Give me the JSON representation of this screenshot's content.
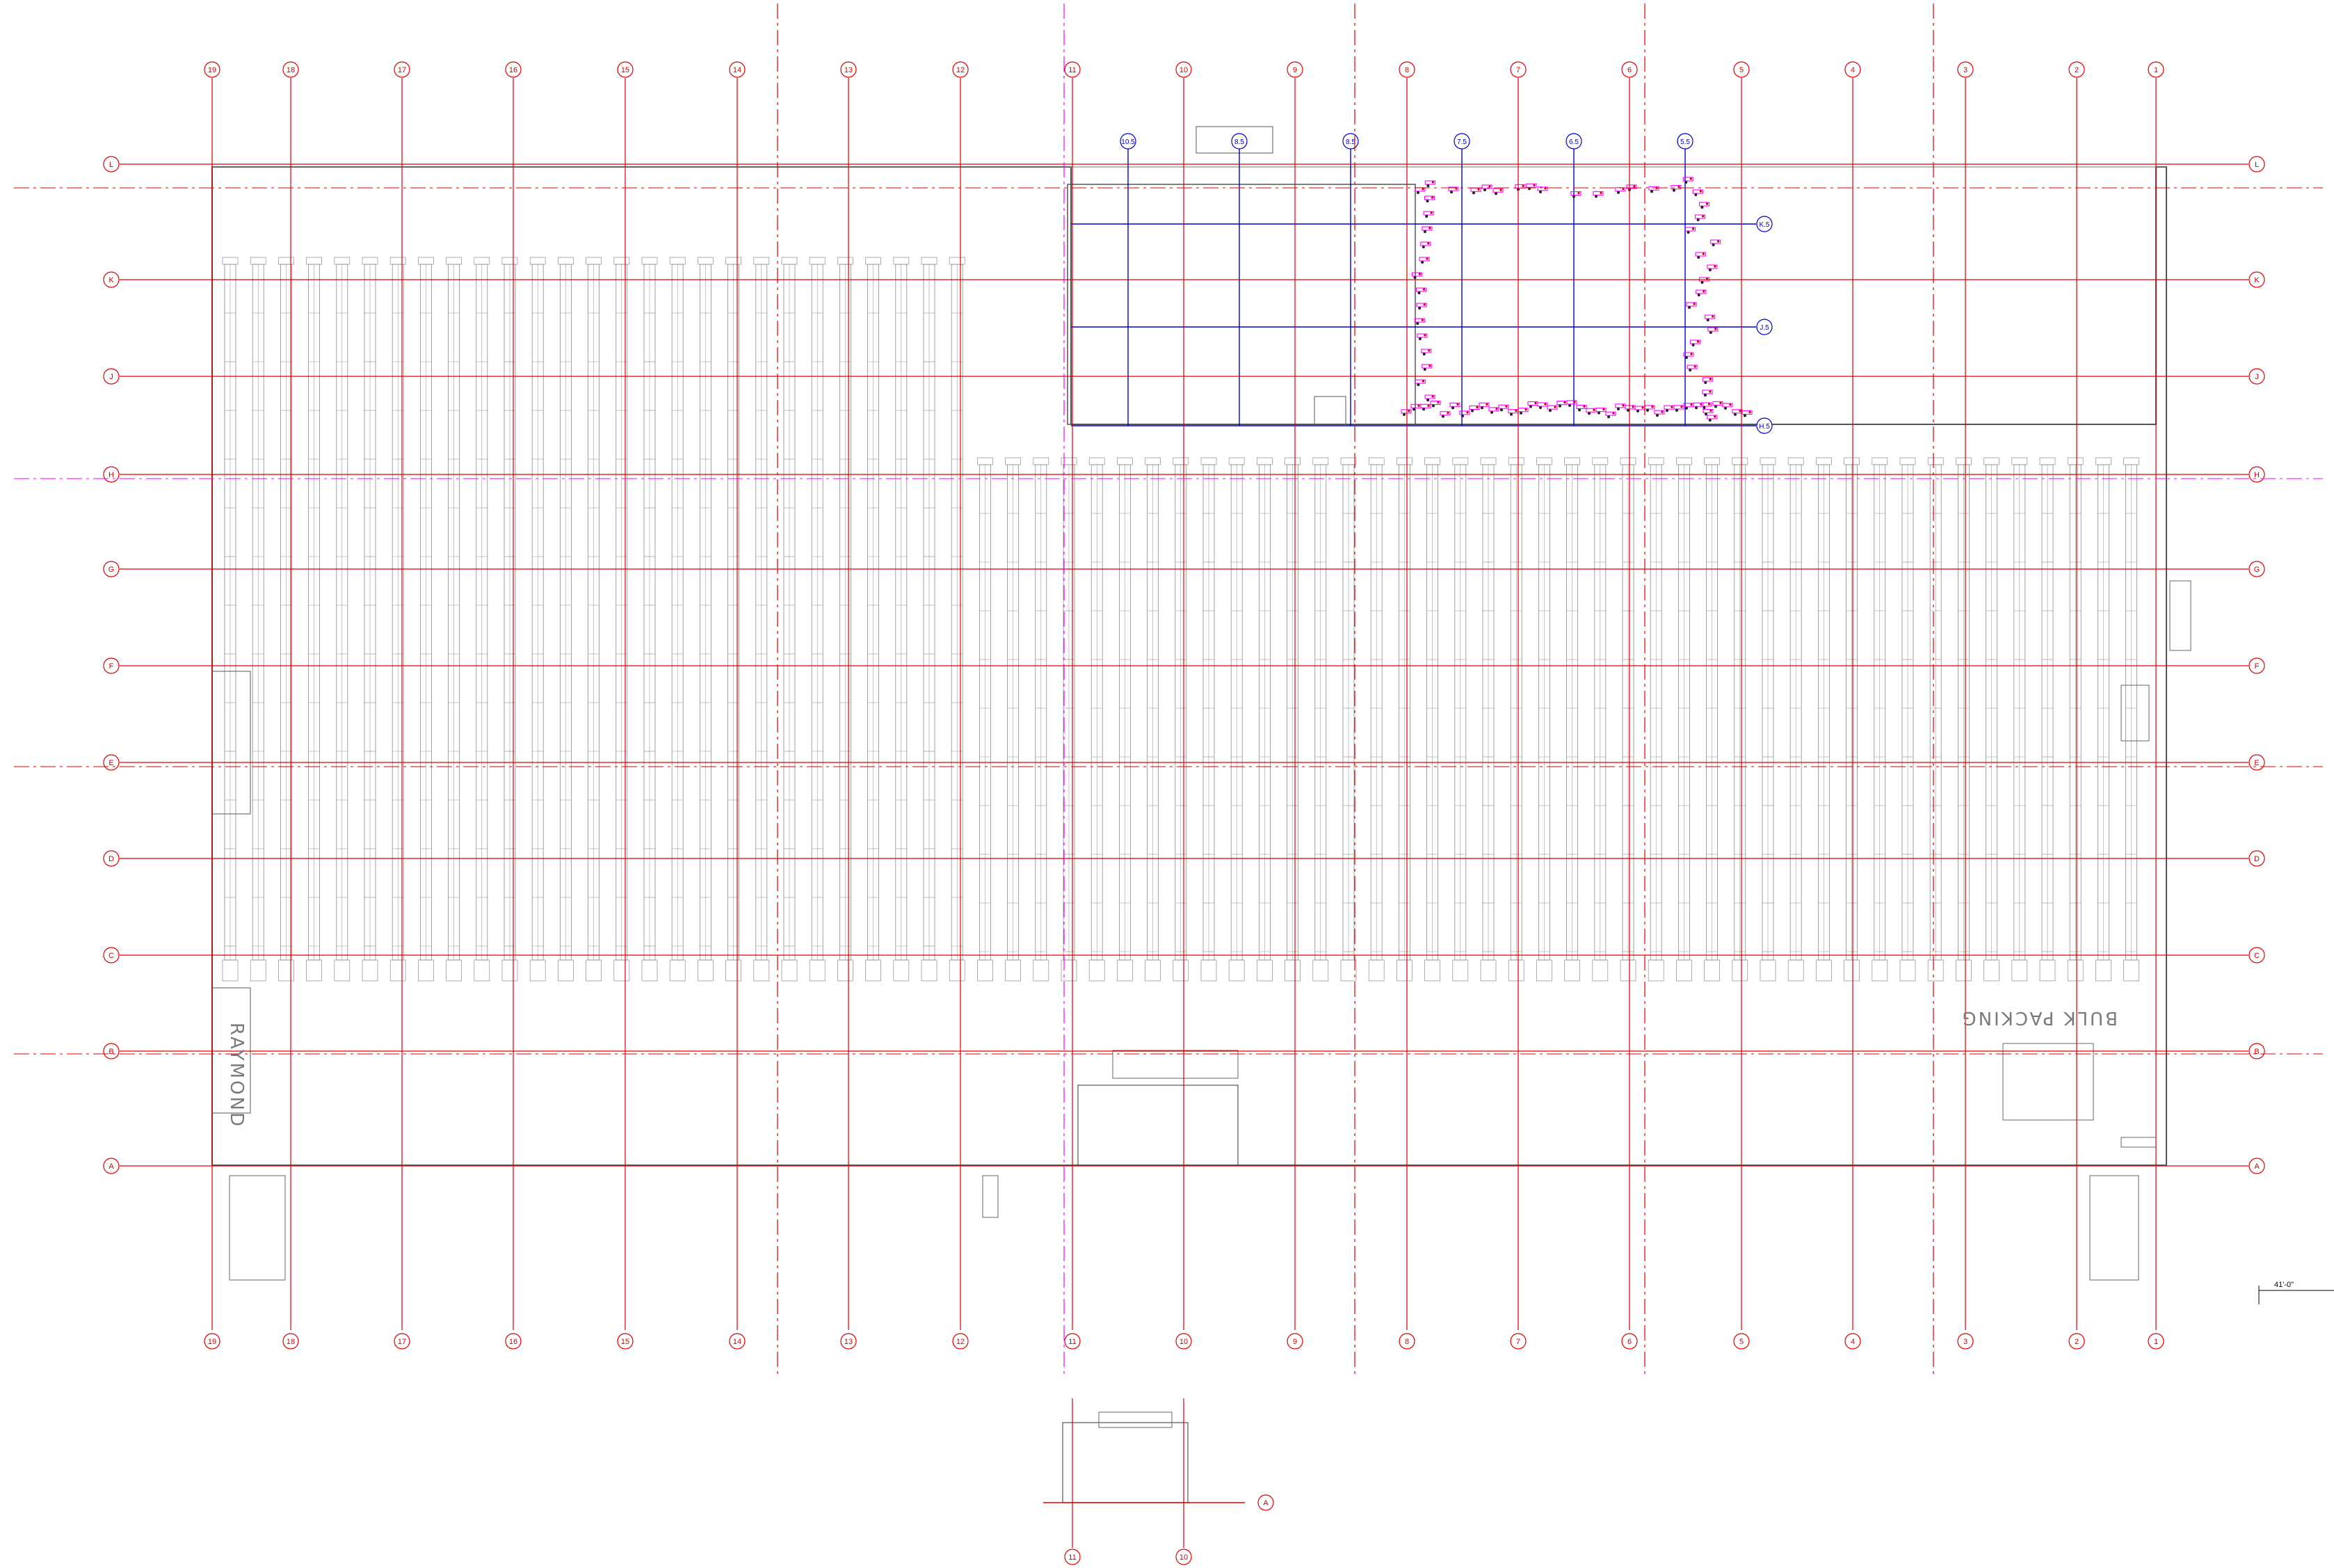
{
  "drawing": {
    "column_grid": [
      "19",
      "18",
      "17",
      "16",
      "15",
      "14",
      "13",
      "12",
      "11",
      "10",
      "9",
      "8",
      "7",
      "6",
      "5",
      "4",
      "3",
      "2",
      "1"
    ],
    "row_grid": [
      "L",
      "K",
      "J",
      "H",
      "G",
      "F",
      "E",
      "D",
      "C",
      "B",
      "A"
    ],
    "interior_grid_cols": [
      "10.5",
      "8.5",
      "8.5",
      "7.5",
      "6.5",
      "5.5"
    ],
    "interior_grid_rows": [
      "K.5",
      "J.5",
      "H.5"
    ],
    "labels": {
      "raymond": "RAYMOND",
      "bulk_packing": "BULK PACKING",
      "scale_text": "41'-0\""
    },
    "detail": {
      "column_labels": [
        "11",
        "10"
      ],
      "row_label": "A"
    },
    "colors": {
      "grid_red": "#e00000",
      "interior_blue": "#0000cc",
      "magenta": "#ff00ff",
      "rack_gray": "#8c8c8c",
      "wall": "#666666"
    }
  }
}
